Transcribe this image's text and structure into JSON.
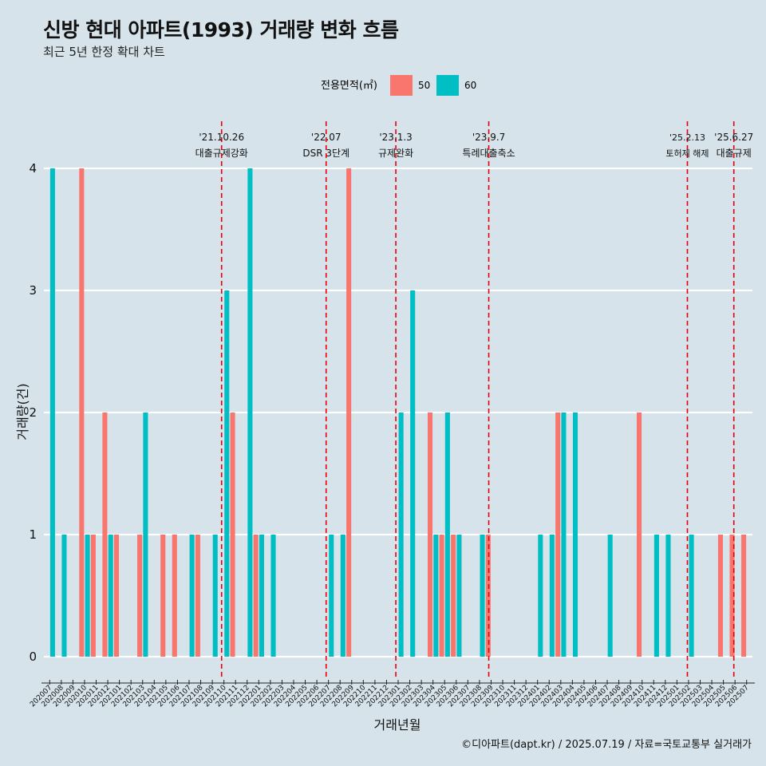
{
  "title": "신방 현대 아파트(1993) 거래량 변화 흐름",
  "subtitle": "최근 5년 한정 확대 차트",
  "source": "©디아파트(dapt.kr) / 2025.07.19 / 자료=국토교통부 실거래가",
  "colors": {
    "s50": "#f8766d",
    "s60": "#00bfc4",
    "vline": "#e8000b",
    "grid": "#ffffff",
    "bg": "#d6e3ea"
  },
  "chart_data": {
    "type": "bar",
    "title": "신방 현대 아파트(1993) 거래량 변화 흐름",
    "subtitle": "최근 5년 한정 확대 차트",
    "xlabel": "거래년월",
    "ylabel": "거래량(건)",
    "ylim": [
      0,
      4
    ],
    "yticks": [
      0,
      1,
      2,
      3,
      4
    ],
    "legend_title": "전용면적(㎡)",
    "legend_position": "top",
    "categories": [
      "202007",
      "202008",
      "202009",
      "202010",
      "202011",
      "202012",
      "202101",
      "202102",
      "202103",
      "202104",
      "202105",
      "202106",
      "202107",
      "202108",
      "202109",
      "202110",
      "202111",
      "202112",
      "202201",
      "202202",
      "202203",
      "202204",
      "202205",
      "202206",
      "202207",
      "202208",
      "202209",
      "202210",
      "202211",
      "202212",
      "202301",
      "202302",
      "202303",
      "202304",
      "202305",
      "202306",
      "202307",
      "202308",
      "202309",
      "202310",
      "202311",
      "202312",
      "202401",
      "202402",
      "202403",
      "202404",
      "202405",
      "202406",
      "202407",
      "202408",
      "202409",
      "202410",
      "202411",
      "202412",
      "202501",
      "202502",
      "202503",
      "202504",
      "202505",
      "202506",
      "202507"
    ],
    "series": [
      {
        "name": "50",
        "values": [
          0,
          0,
          0,
          4,
          1,
          2,
          1,
          0,
          1,
          0,
          1,
          1,
          0,
          1,
          0,
          0,
          2,
          0,
          1,
          0,
          0,
          0,
          0,
          0,
          0,
          0,
          4,
          0,
          0,
          0,
          0,
          0,
          0,
          2,
          1,
          1,
          0,
          0,
          1,
          0,
          0,
          0,
          0,
          0,
          2,
          0,
          0,
          0,
          0,
          0,
          0,
          2,
          0,
          0,
          0,
          0,
          0,
          0,
          1,
          1,
          1
        ]
      },
      {
        "name": "60",
        "values": [
          4,
          1,
          0,
          1,
          0,
          1,
          0,
          0,
          2,
          0,
          0,
          0,
          1,
          0,
          1,
          3,
          0,
          4,
          1,
          1,
          0,
          0,
          0,
          0,
          1,
          1,
          0,
          0,
          0,
          0,
          2,
          3,
          0,
          1,
          2,
          1,
          0,
          1,
          0,
          0,
          0,
          0,
          1,
          1,
          2,
          2,
          0,
          0,
          1,
          0,
          0,
          0,
          1,
          1,
          0,
          1,
          0,
          0,
          0,
          0,
          0
        ]
      }
    ],
    "annotations": [
      {
        "index": 15.3,
        "date": "'21.10.26",
        "label": "대출규제강화"
      },
      {
        "index": 24.3,
        "date": "'22.07",
        "label": "DSR 3단계"
      },
      {
        "index": 30.3,
        "date": "'23.1.3",
        "label": "규제완화"
      },
      {
        "index": 38.3,
        "date": "'23.9.7",
        "label": "특례대출축소"
      },
      {
        "index": 55.4,
        "date": "'25.2.13",
        "label": "토허제 해제"
      },
      {
        "index": 59.4,
        "date": "'25.6.27",
        "label": "대출규제"
      }
    ]
  }
}
